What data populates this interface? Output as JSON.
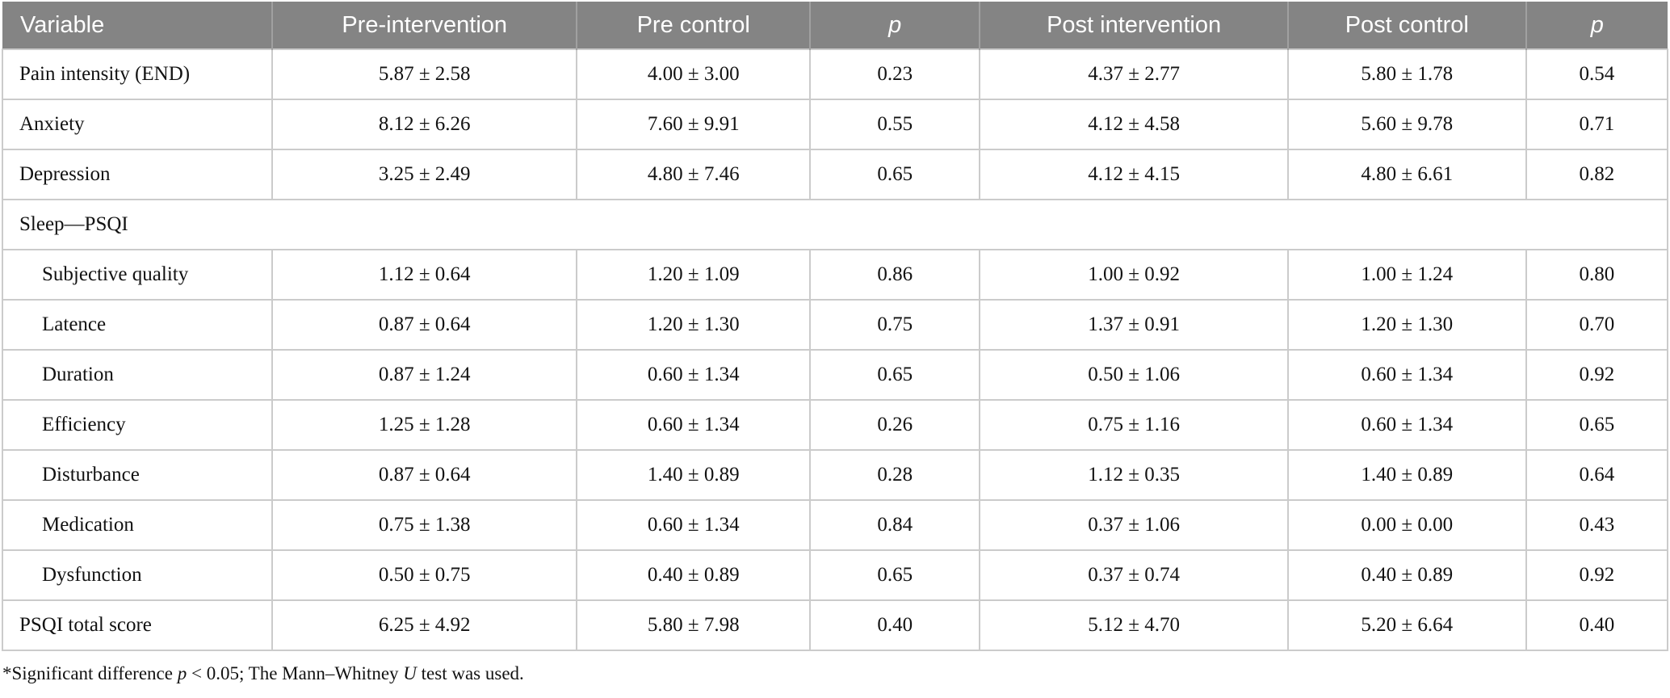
{
  "table": {
    "columns": [
      {
        "label": "Variable"
      },
      {
        "label": "Pre-intervention"
      },
      {
        "label": "Pre control"
      },
      {
        "label": "p",
        "italic": true
      },
      {
        "label": "Post intervention"
      },
      {
        "label": "Post control"
      },
      {
        "label": "p",
        "italic": true
      }
    ],
    "rows": [
      {
        "label": "Pain intensity (END)",
        "type": "top",
        "values": [
          "5.87 ± 2.58",
          "4.00 ± 3.00",
          "0.23",
          "4.37 ± 2.77",
          "5.80 ± 1.78",
          "0.54"
        ]
      },
      {
        "label": "Anxiety",
        "type": "top",
        "values": [
          "8.12 ± 6.26",
          "7.60 ± 9.91",
          "0.55",
          "4.12 ± 4.58",
          "5.60 ± 9.78",
          "0.71"
        ]
      },
      {
        "label": "Depression",
        "type": "top",
        "values": [
          "3.25 ± 2.49",
          "4.80 ± 7.46",
          "0.65",
          "4.12 ± 4.15",
          "4.80 ± 6.61",
          "0.82"
        ]
      },
      {
        "label": "Sleep—PSQI",
        "type": "section",
        "values": []
      },
      {
        "label": "Subjective quality",
        "type": "sub",
        "values": [
          "1.12 ± 0.64",
          "1.20 ± 1.09",
          "0.86",
          "1.00 ± 0.92",
          "1.00 ± 1.24",
          "0.80"
        ]
      },
      {
        "label": "Latence",
        "type": "sub",
        "values": [
          "0.87 ± 0.64",
          "1.20 ± 1.30",
          "0.75",
          "1.37 ± 0.91",
          "1.20 ± 1.30",
          "0.70"
        ]
      },
      {
        "label": "Duration",
        "type": "sub",
        "values": [
          "0.87 ± 1.24",
          "0.60 ± 1.34",
          "0.65",
          "0.50 ± 1.06",
          "0.60 ± 1.34",
          "0.92"
        ]
      },
      {
        "label": "Efficiency",
        "type": "sub",
        "values": [
          "1.25 ± 1.28",
          "0.60 ± 1.34",
          "0.26",
          "0.75 ± 1.16",
          "0.60 ± 1.34",
          "0.65"
        ]
      },
      {
        "label": "Disturbance",
        "type": "sub",
        "values": [
          "0.87 ± 0.64",
          "1.40 ± 0.89",
          "0.28",
          "1.12 ± 0.35",
          "1.40 ± 0.89",
          "0.64"
        ]
      },
      {
        "label": "Medication",
        "type": "sub",
        "values": [
          "0.75 ± 1.38",
          "0.60 ± 1.34",
          "0.84",
          "0.37 ± 1.06",
          "0.00 ± 0.00",
          "0.43"
        ]
      },
      {
        "label": "Dysfunction",
        "type": "sub",
        "values": [
          "0.50 ± 0.75",
          "0.40 ± 0.89",
          "0.65",
          "0.37 ± 0.74",
          "0.40 ± 0.89",
          "0.92"
        ]
      },
      {
        "label": "PSQI total score",
        "type": "top",
        "values": [
          "6.25 ± 4.92",
          "5.80 ± 7.98",
          "0.40",
          "5.12 ± 4.70",
          "5.20 ± 6.64",
          "0.40"
        ]
      }
    ],
    "footnote": {
      "part1": "*Significant difference ",
      "p_symbol": "p",
      "part2": " < 0.05; The Mann–Whitney ",
      "u_symbol": "U",
      "part3": " test was used."
    }
  },
  "colors": {
    "header_background": "#848484",
    "header_text": "#ffffff",
    "header_divider": "#a0a0a0",
    "body_border": "#cbcbcb",
    "body_text": "#121212"
  }
}
